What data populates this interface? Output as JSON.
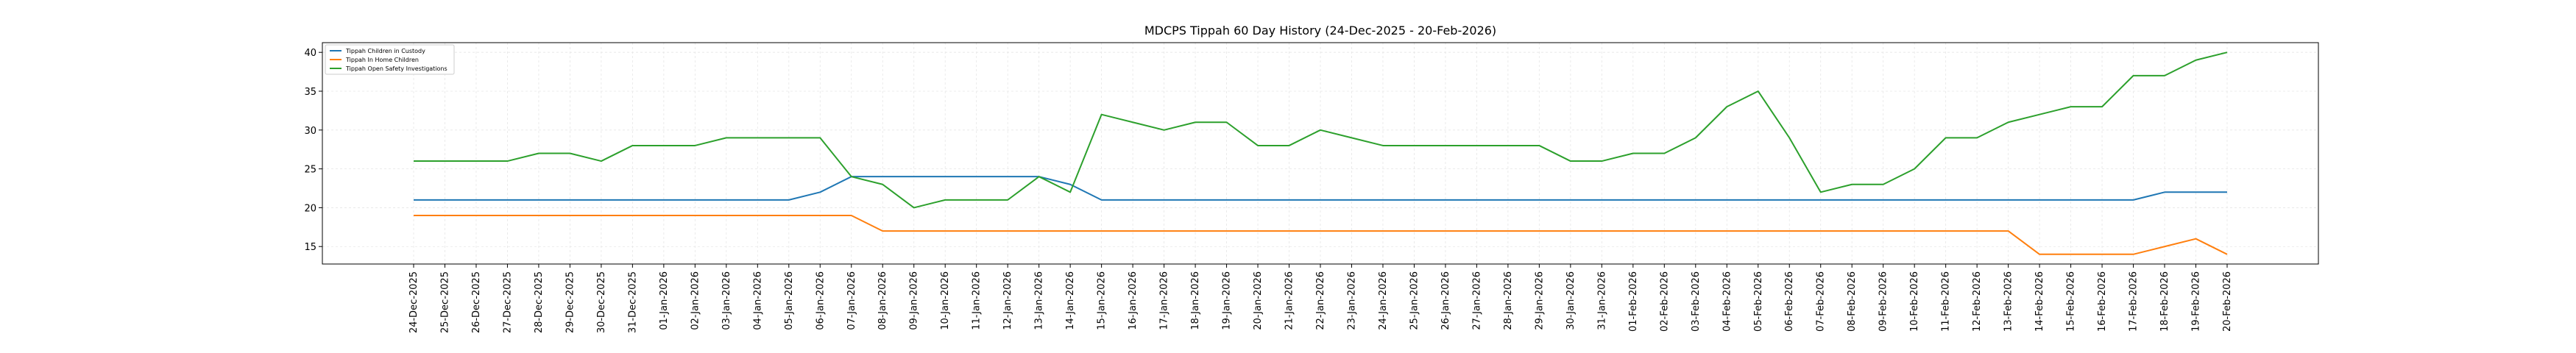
{
  "chart_data": {
    "type": "line",
    "title": "MDCPS Tippah 60 Day History (24-Dec-2025 - 20-Feb-2026)",
    "xlabel": "",
    "ylabel": "",
    "ylim": [
      12.75,
      41.25
    ],
    "yticks": [
      15,
      20,
      25,
      30,
      35,
      40
    ],
    "grid": true,
    "legend_position": "top-left",
    "categories": [
      "24-Dec-2025",
      "25-Dec-2025",
      "26-Dec-2025",
      "27-Dec-2025",
      "28-Dec-2025",
      "29-Dec-2025",
      "30-Dec-2025",
      "31-Dec-2025",
      "01-Jan-2026",
      "02-Jan-2026",
      "03-Jan-2026",
      "04-Jan-2026",
      "05-Jan-2026",
      "06-Jan-2026",
      "07-Jan-2026",
      "08-Jan-2026",
      "09-Jan-2026",
      "10-Jan-2026",
      "11-Jan-2026",
      "12-Jan-2026",
      "13-Jan-2026",
      "14-Jan-2026",
      "15-Jan-2026",
      "16-Jan-2026",
      "17-Jan-2026",
      "18-Jan-2026",
      "19-Jan-2026",
      "20-Jan-2026",
      "21-Jan-2026",
      "22-Jan-2026",
      "23-Jan-2026",
      "24-Jan-2026",
      "25-Jan-2026",
      "26-Jan-2026",
      "27-Jan-2026",
      "28-Jan-2026",
      "29-Jan-2026",
      "30-Jan-2026",
      "31-Jan-2026",
      "01-Feb-2026",
      "02-Feb-2026",
      "03-Feb-2026",
      "04-Feb-2026",
      "05-Feb-2026",
      "06-Feb-2026",
      "07-Feb-2026",
      "08-Feb-2026",
      "09-Feb-2026",
      "10-Feb-2026",
      "11-Feb-2026",
      "12-Feb-2026",
      "13-Feb-2026",
      "14-Feb-2026",
      "15-Feb-2026",
      "16-Feb-2026",
      "17-Feb-2026",
      "18-Feb-2026",
      "19-Feb-2026",
      "20-Feb-2026"
    ],
    "series": [
      {
        "name": "Tippah Children in Custody",
        "color": "#1f77b4",
        "values": [
          21,
          21,
          21,
          21,
          21,
          21,
          21,
          21,
          21,
          21,
          21,
          21,
          21,
          22,
          24,
          24,
          24,
          24,
          24,
          24,
          24,
          23,
          21,
          21,
          21,
          21,
          21,
          21,
          21,
          21,
          21,
          21,
          21,
          21,
          21,
          21,
          21,
          21,
          21,
          21,
          21,
          21,
          21,
          21,
          21,
          21,
          21,
          21,
          21,
          21,
          21,
          21,
          21,
          21,
          21,
          21,
          22,
          22,
          22
        ]
      },
      {
        "name": "Tippah In Home Children",
        "color": "#ff7f0e",
        "values": [
          19,
          19,
          19,
          19,
          19,
          19,
          19,
          19,
          19,
          19,
          19,
          19,
          19,
          19,
          19,
          17,
          17,
          17,
          17,
          17,
          17,
          17,
          17,
          17,
          17,
          17,
          17,
          17,
          17,
          17,
          17,
          17,
          17,
          17,
          17,
          17,
          17,
          17,
          17,
          17,
          17,
          17,
          17,
          17,
          17,
          17,
          17,
          17,
          17,
          17,
          17,
          17,
          14,
          14,
          14,
          14,
          15,
          16,
          14
        ]
      },
      {
        "name": "Tippah Open Safety Investigations",
        "color": "#2ca02c",
        "values": [
          26,
          26,
          26,
          26,
          27,
          27,
          26,
          28,
          28,
          28,
          29,
          29,
          29,
          29,
          24,
          23,
          20,
          21,
          21,
          21,
          24,
          22,
          32,
          31,
          30,
          31,
          31,
          28,
          28,
          30,
          29,
          28,
          28,
          28,
          28,
          28,
          28,
          26,
          26,
          27,
          27,
          29,
          33,
          35,
          29,
          22,
          23,
          23,
          25,
          29,
          29,
          31,
          32,
          33,
          33,
          37,
          37,
          39,
          40
        ]
      }
    ]
  }
}
